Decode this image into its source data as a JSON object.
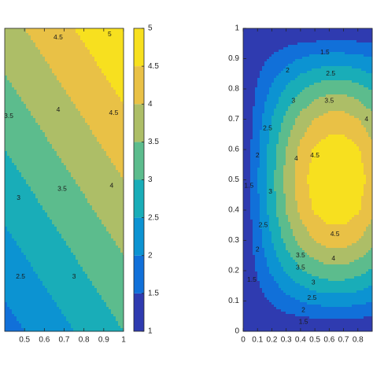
{
  "chart_data": [
    {
      "type": "contourf",
      "x": [
        0.4,
        0.5,
        0.6,
        0.7,
        0.8,
        0.9,
        1
      ],
      "y": [
        0,
        0.1,
        0.2,
        0.3,
        0.4,
        0.5,
        0.6,
        0.7,
        0.8,
        0.9,
        1
      ],
      "z": [
        [
          1.8,
          2,
          2.2,
          2.4,
          2.6,
          2.8,
          3
        ],
        [
          2,
          2.2,
          2.4,
          2.6,
          2.8,
          3,
          3.2
        ],
        [
          2.2,
          2.4,
          2.6,
          2.8,
          3,
          3.2,
          3.4
        ],
        [
          2.4,
          2.6,
          2.8,
          3,
          3.2,
          3.4,
          3.6
        ],
        [
          2.6,
          2.8,
          3,
          3.2,
          3.4,
          3.6,
          3.8
        ],
        [
          2.8,
          3,
          3.2,
          3.4,
          3.6,
          3.8,
          4
        ],
        [
          3,
          3.2,
          3.4,
          3.6,
          3.8,
          4,
          4.2
        ],
        [
          3.2,
          3.4,
          3.6,
          3.8,
          4,
          4.2,
          4.4
        ],
        [
          3.4,
          3.6,
          3.8,
          4,
          4.2,
          4.4,
          4.6
        ],
        [
          3.6,
          3.8,
          4,
          4.2,
          4.4,
          4.6,
          4.8
        ],
        [
          3.8,
          4,
          4.2,
          4.4,
          4.6,
          4.8,
          5
        ]
      ],
      "xlim": [
        0.4,
        1
      ],
      "ylim": [
        0,
        1
      ],
      "xticks": [
        0.5,
        0.6,
        0.7,
        0.8,
        0.9,
        1
      ],
      "levels": [
        1,
        1.5,
        2,
        2.5,
        3,
        3.5,
        4,
        4.5,
        5
      ],
      "colors": [
        "#2f3bb0",
        "#1170d9",
        "#0c93d2",
        "#19adb8",
        "#5cbc8d",
        "#adbe67",
        "#e9c146",
        "#f7e01f"
      ],
      "colorbar": true,
      "labels": [
        {
          "level": 4.5,
          "x": 0.67,
          "y": 0.97
        },
        {
          "level": 5,
          "x": 0.93,
          "y": 0.98
        },
        {
          "level": 4,
          "x": 0.67,
          "y": 0.73
        },
        {
          "level": 4.5,
          "x": 0.95,
          "y": 0.72
        },
        {
          "level": 3.5,
          "x": 0.42,
          "y": 0.71
        },
        {
          "level": 3.5,
          "x": 0.69,
          "y": 0.47
        },
        {
          "level": 4,
          "x": 0.94,
          "y": 0.48
        },
        {
          "level": 3,
          "x": 0.47,
          "y": 0.44
        },
        {
          "level": 3,
          "x": 0.75,
          "y": 0.18
        },
        {
          "level": 2.5,
          "x": 0.48,
          "y": 0.18
        }
      ]
    },
    {
      "type": "contourf",
      "x": [
        0,
        0.1,
        0.2,
        0.3,
        0.4,
        0.5,
        0.6,
        0.7,
        0.8,
        0.9
      ],
      "y": [
        0,
        0.1,
        0.2,
        0.3,
        0.4,
        0.5,
        0.6,
        0.7,
        0.8,
        0.9,
        1
      ],
      "z": [
        [
          1,
          1,
          1,
          1,
          1,
          1,
          1,
          1,
          1,
          1
        ],
        [
          1,
          1.3,
          1.57,
          1.82,
          2.02,
          2.16,
          2.23,
          2.23,
          2.16,
          2.02
        ],
        [
          1,
          1.56,
          2.09,
          2.56,
          2.94,
          3.2,
          3.34,
          3.34,
          3.2,
          2.94
        ],
        [
          1,
          1.77,
          2.5,
          3.15,
          3.66,
          4.03,
          4.21,
          4.21,
          4.03,
          3.66
        ],
        [
          1,
          1.91,
          2.77,
          3.52,
          4.13,
          4.56,
          4.78,
          4.78,
          4.56,
          4.13
        ],
        [
          1,
          1.96,
          2.86,
          3.65,
          4.29,
          4.74,
          4.97,
          4.97,
          4.74,
          4.29
        ],
        [
          1,
          1.91,
          2.77,
          3.52,
          4.13,
          4.56,
          4.78,
          4.78,
          4.56,
          4.13
        ],
        [
          1,
          1.77,
          2.5,
          3.15,
          3.66,
          4.03,
          4.21,
          4.21,
          4.03,
          3.66
        ],
        [
          1,
          1.56,
          2.09,
          2.56,
          2.94,
          3.2,
          3.34,
          3.34,
          3.2,
          2.94
        ],
        [
          1,
          1.3,
          1.57,
          1.82,
          2.02,
          2.16,
          2.23,
          2.23,
          2.16,
          2.02
        ],
        [
          1,
          1,
          1,
          1,
          1,
          1,
          1,
          1,
          1,
          1
        ]
      ],
      "xlim": [
        0,
        0.9
      ],
      "ylim": [
        0,
        1
      ],
      "xticks": [
        0,
        0.1,
        0.2,
        0.3,
        0.4,
        0.5,
        0.6,
        0.7,
        0.8
      ],
      "yticks": [
        0,
        0.1,
        0.2,
        0.3,
        0.4,
        0.5,
        0.6,
        0.7,
        0.8,
        0.9,
        1
      ],
      "levels": [
        1,
        1.5,
        2,
        2.5,
        3,
        3.5,
        4,
        4.5,
        5
      ],
      "colors": [
        "#2f3bb0",
        "#1170d9",
        "#0c93d2",
        "#19adb8",
        "#5cbc8d",
        "#adbe67",
        "#e9c146",
        "#f7e01f"
      ],
      "labels": [
        {
          "level": 1.5,
          "x": 0.57,
          "y": 0.92
        },
        {
          "level": 2,
          "x": 0.31,
          "y": 0.86
        },
        {
          "level": 2.5,
          "x": 0.61,
          "y": 0.85
        },
        {
          "level": 3,
          "x": 0.35,
          "y": 0.76
        },
        {
          "level": 3.5,
          "x": 0.6,
          "y": 0.76
        },
        {
          "level": 4,
          "x": 0.86,
          "y": 0.7
        },
        {
          "level": 2.5,
          "x": 0.17,
          "y": 0.67
        },
        {
          "level": 2,
          "x": 0.1,
          "y": 0.58
        },
        {
          "level": 4,
          "x": 0.37,
          "y": 0.57
        },
        {
          "level": 4.5,
          "x": 0.5,
          "y": 0.58
        },
        {
          "level": 1.5,
          "x": 0.04,
          "y": 0.48
        },
        {
          "level": 3,
          "x": 0.19,
          "y": 0.46
        },
        {
          "level": 2.5,
          "x": 0.14,
          "y": 0.35
        },
        {
          "level": 4.5,
          "x": 0.64,
          "y": 0.32
        },
        {
          "level": 2,
          "x": 0.1,
          "y": 0.27
        },
        {
          "level": 3.5,
          "x": 0.4,
          "y": 0.25
        },
        {
          "level": 4,
          "x": 0.63,
          "y": 0.24
        },
        {
          "level": 3.5,
          "x": 0.4,
          "y": 0.21
        },
        {
          "level": 3,
          "x": 0.49,
          "y": 0.16
        },
        {
          "level": 1.5,
          "x": 0.06,
          "y": 0.17
        },
        {
          "level": 2.5,
          "x": 0.48,
          "y": 0.11
        },
        {
          "level": 2,
          "x": 0.42,
          "y": 0.07
        },
        {
          "level": 1.5,
          "x": 0.42,
          "y": 0.03
        }
      ]
    }
  ]
}
